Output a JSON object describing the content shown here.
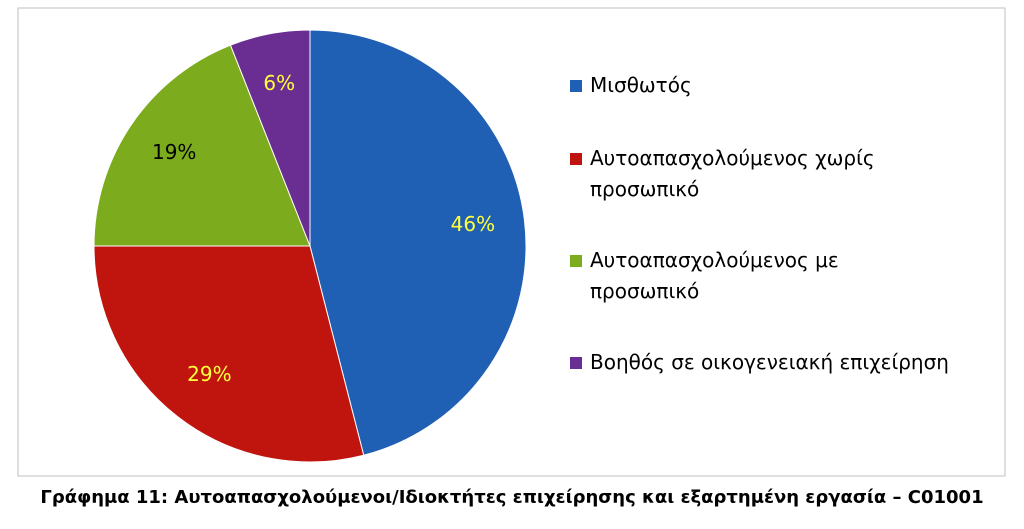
{
  "chart_data": {
    "type": "pie",
    "caption": "Γράφημα 11: Αυτοαπασχολούμενοι/Ιδιοκτήτες επιχείρησης και εξαρτημένη εργασία – C01001",
    "categories": [
      "Μισθωτός",
      "Αυτοαπασχολούμενος χωρίς προσωπικό",
      "Αυτοαπασχολούμενος με προσωπικό",
      "Βοηθός σε οικογενειακή επιχείρηση"
    ],
    "values": [
      46,
      29,
      19,
      6
    ],
    "value_labels": [
      "46%",
      "29%",
      "19%",
      "6%"
    ],
    "colors": [
      "#1f5fb4",
      "#c0150e",
      "#7cac1e",
      "#6a2d91"
    ],
    "label_colors": [
      "#ffff3c",
      "#ffff3c",
      "#000000",
      "#ffff3c"
    ],
    "legend": "right"
  }
}
